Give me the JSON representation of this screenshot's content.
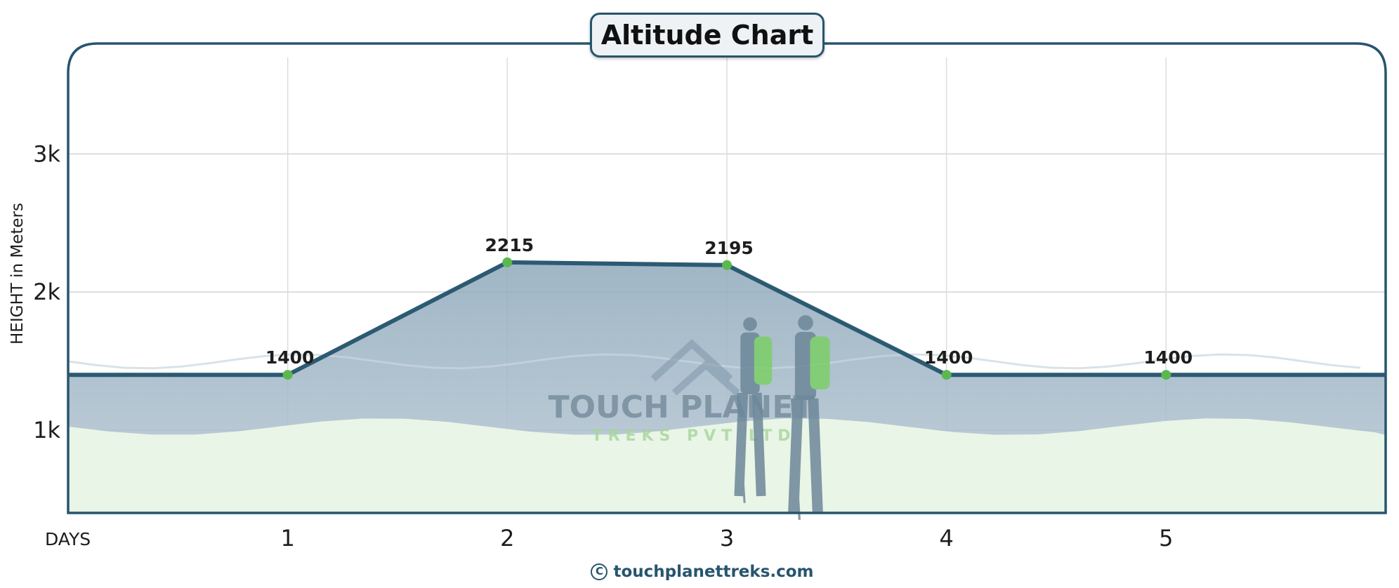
{
  "chart_data": {
    "type": "line",
    "title": "Altitude Chart",
    "xlabel": "DAYS",
    "ylabel": "HEIGHT in Meters",
    "categories": [
      "1",
      "2",
      "3",
      "4",
      "5"
    ],
    "x": [
      1,
      2,
      3,
      4,
      5
    ],
    "values": [
      1400,
      2215,
      2195,
      1400,
      1400
    ],
    "data_labels": [
      "1400",
      "2215",
      "2195",
      "1400",
      "1400"
    ],
    "y_ticks": [
      1000,
      2000,
      3000
    ],
    "y_tick_labels": [
      "1k",
      "2k",
      "3k"
    ],
    "xlim": [
      0,
      6
    ],
    "ylim": [
      400,
      3800
    ],
    "grid": true,
    "line_extends_to_edges": true
  },
  "watermark": {
    "line1": "TOUCH PLANET",
    "line2": "TREKS PVT LTD"
  },
  "footer": {
    "text": "touchplanettreks.com",
    "icon": "copyright-icon"
  },
  "colors": {
    "frame": "#27556e",
    "line": "#2c5a72",
    "point": "#5ab84f",
    "mountain": "#8ea7b8",
    "ground": "#e9f5e6",
    "grid": "#dddddd"
  }
}
